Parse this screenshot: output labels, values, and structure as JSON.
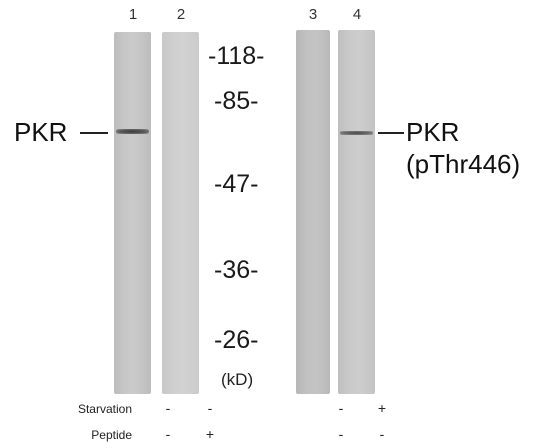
{
  "lanes": [
    {
      "number": "1"
    },
    {
      "number": "2"
    },
    {
      "number": "3"
    },
    {
      "number": "4"
    }
  ],
  "markers": [
    "-118-",
    "-85-",
    "-47-",
    "-36-",
    "-26-"
  ],
  "unit": "(kD)",
  "left_band_label": "PKR",
  "right_band_label": {
    "line1": "PKR",
    "line2": "(pThr446)"
  },
  "treatments": [
    {
      "label": "Starvation",
      "signs": [
        "-",
        "-",
        "-",
        "+"
      ]
    },
    {
      "label": "Peptide",
      "signs": [
        "-",
        "+",
        "-",
        "-"
      ]
    }
  ],
  "colors": {
    "background": "#ffffff",
    "lane": "#c4c4c4",
    "band": "#4a4a4a",
    "text": "#1a1a1a"
  }
}
